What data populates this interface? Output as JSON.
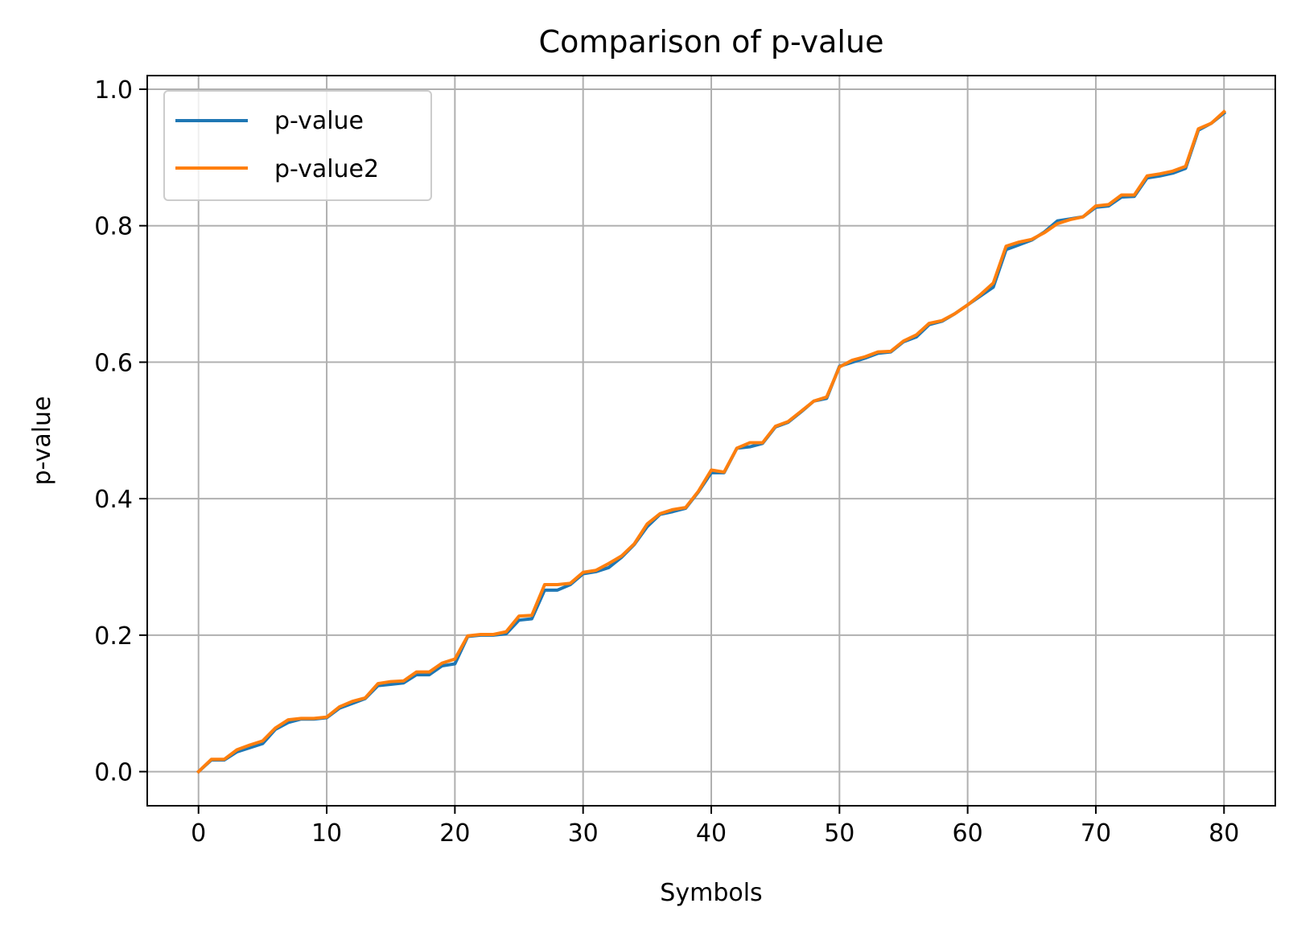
{
  "chart_data": {
    "type": "line",
    "title": "Comparison of p-value",
    "xlabel": "Symbols",
    "ylabel": "p-value",
    "xlim": [
      -4,
      84
    ],
    "ylim": [
      -0.05,
      1.02
    ],
    "xticks": [
      0,
      10,
      20,
      30,
      40,
      50,
      60,
      70,
      80
    ],
    "xtick_labels": [
      "0",
      "10",
      "20",
      "30",
      "40",
      "50",
      "60",
      "70",
      "80"
    ],
    "yticks": [
      0.0,
      0.2,
      0.4,
      0.6,
      0.8,
      1.0
    ],
    "ytick_labels": [
      "0.0",
      "0.2",
      "0.4",
      "0.6",
      "0.8",
      "1.0"
    ],
    "grid": true,
    "legend_position": "top-left",
    "x": [
      0,
      1,
      2,
      3,
      4,
      5,
      6,
      7,
      8,
      9,
      10,
      11,
      12,
      13,
      14,
      15,
      16,
      17,
      18,
      19,
      20,
      21,
      22,
      23,
      24,
      25,
      26,
      27,
      28,
      29,
      30,
      31,
      32,
      33,
      34,
      35,
      36,
      37,
      38,
      39,
      40,
      41,
      42,
      43,
      44,
      45,
      46,
      47,
      48,
      49,
      50,
      51,
      52,
      53,
      54,
      55,
      56,
      57,
      58,
      59,
      60,
      61,
      62,
      63,
      64,
      65,
      66,
      67,
      68,
      69,
      70,
      71,
      72,
      73,
      74,
      75,
      76,
      77,
      78,
      79,
      80
    ],
    "series": [
      {
        "name": "p-value",
        "color": "#1f77b4",
        "values": [
          0.0,
          0.017,
          0.017,
          0.029,
          0.035,
          0.041,
          0.062,
          0.072,
          0.077,
          0.077,
          0.079,
          0.093,
          0.1,
          0.107,
          0.126,
          0.128,
          0.13,
          0.142,
          0.142,
          0.155,
          0.158,
          0.198,
          0.2,
          0.2,
          0.202,
          0.222,
          0.224,
          0.266,
          0.266,
          0.274,
          0.29,
          0.293,
          0.299,
          0.314,
          0.333,
          0.359,
          0.377,
          0.381,
          0.386,
          0.41,
          0.438,
          0.438,
          0.474,
          0.476,
          0.481,
          0.505,
          0.512,
          0.527,
          0.543,
          0.547,
          0.594,
          0.6,
          0.606,
          0.613,
          0.615,
          0.63,
          0.637,
          0.655,
          0.66,
          0.671,
          0.684,
          0.697,
          0.71,
          0.765,
          0.772,
          0.779,
          0.791,
          0.807,
          0.81,
          0.813,
          0.827,
          0.829,
          0.842,
          0.843,
          0.87,
          0.873,
          0.877,
          0.884,
          0.94,
          0.95,
          0.965
        ]
      },
      {
        "name": "p-value2",
        "color": "#ff7f0e",
        "values": [
          0.0,
          0.018,
          0.018,
          0.032,
          0.039,
          0.045,
          0.064,
          0.076,
          0.078,
          0.078,
          0.08,
          0.095,
          0.103,
          0.108,
          0.129,
          0.132,
          0.133,
          0.146,
          0.146,
          0.159,
          0.165,
          0.199,
          0.201,
          0.201,
          0.205,
          0.228,
          0.229,
          0.274,
          0.274,
          0.276,
          0.292,
          0.295,
          0.305,
          0.316,
          0.334,
          0.363,
          0.378,
          0.384,
          0.387,
          0.411,
          0.442,
          0.439,
          0.474,
          0.482,
          0.482,
          0.506,
          0.513,
          0.528,
          0.543,
          0.549,
          0.593,
          0.603,
          0.608,
          0.615,
          0.616,
          0.631,
          0.64,
          0.657,
          0.661,
          0.671,
          0.684,
          0.699,
          0.716,
          0.77,
          0.776,
          0.78,
          0.79,
          0.803,
          0.809,
          0.813,
          0.829,
          0.831,
          0.845,
          0.845,
          0.873,
          0.876,
          0.88,
          0.887,
          0.942,
          0.95,
          0.967
        ]
      }
    ]
  }
}
